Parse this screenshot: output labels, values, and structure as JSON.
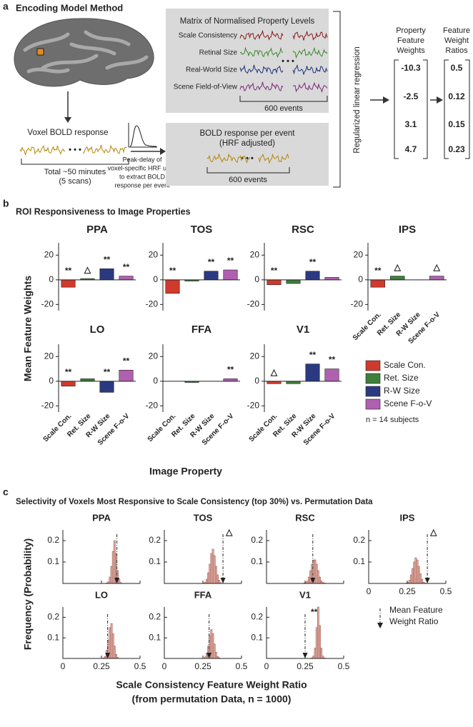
{
  "panel_a": {
    "label": "a",
    "title": "Encoding Model Method",
    "voxel_label": "Voxel BOLD response",
    "duration": [
      "Total ~50 minutes",
      "(5 scans)"
    ],
    "matrix": {
      "title": "Matrix of Normalised Property Levels",
      "rows": [
        {
          "name": "Scale Consistency",
          "color": "#8b1a1a"
        },
        {
          "name": "Retinal Size",
          "color": "#3a8a2a"
        },
        {
          "name": "Real-World Size",
          "color": "#1f2f7a"
        },
        {
          "name": "Scene Field-of-View",
          "color": "#7a2a7a"
        }
      ],
      "events": "600 events"
    },
    "hrf_note": [
      "Peak-delay of",
      "voxel-specific HRF used",
      "to extract BOLD",
      "response per event"
    ],
    "event_box": {
      "title": [
        "BOLD response per event",
        "(HRF adjusted)"
      ],
      "events": "600 events"
    },
    "regression": "Regularized linear regression",
    "weights": {
      "title": [
        "Property",
        "Feature",
        "Weights"
      ],
      "values": [
        -10.3,
        -2.5,
        3.1,
        4.7
      ]
    },
    "ratios": {
      "title": [
        "Feature",
        "Weight",
        "Ratios"
      ],
      "values": [
        0.5,
        0.12,
        0.15,
        0.23
      ]
    }
  },
  "panel_b": {
    "label": "b",
    "title": "ROI Responsiveness to Image Properties",
    "ylabel": "Mean Feature Weights",
    "xlabel": "Image Property",
    "note": "n = 14 subjects"
  },
  "panel_c": {
    "label": "c",
    "title": "Selectivity of Voxels Most Responsive to Scale Consistency (top 30%) vs. Permutation Data",
    "ylabel": "Frequency (Probability)",
    "xlabel": [
      "Scale Consistency Feature Weight Ratio",
      "(from permutation Data, n = 1000)"
    ],
    "legend": [
      "Mean Feature",
      "Weight Ratio"
    ]
  },
  "chart_data": [
    {
      "type": "bar",
      "title": "PPA",
      "title_color": "#2a5aa8",
      "categories": [
        null,
        null,
        null,
        null
      ],
      "colors": [
        "#d03a2c",
        "#3f7f3a",
        "#2b3a80",
        "#b060b0"
      ],
      "values": [
        -6,
        1,
        9,
        3
      ],
      "annotations": [
        "**",
        "△",
        "**",
        "**"
      ],
      "ylim": [
        -25,
        30
      ],
      "yticks": [
        -20,
        0,
        20
      ]
    },
    {
      "type": "bar",
      "title": "TOS",
      "title_color": "#4caf3a",
      "categories": [
        null,
        null,
        null,
        null
      ],
      "colors": [
        "#d03a2c",
        "#3f7f3a",
        "#2b3a80",
        "#b060b0"
      ],
      "values": [
        -11,
        -1,
        7,
        8
      ],
      "annotations": [
        "**",
        null,
        "**",
        "**"
      ],
      "ylim": [
        -25,
        30
      ],
      "yticks": [
        -20,
        0,
        20
      ]
    },
    {
      "type": "bar",
      "title": "RSC",
      "title_color": "#5bc8e0",
      "categories": [
        null,
        null,
        null,
        null
      ],
      "colors": [
        "#d03a2c",
        "#3f7f3a",
        "#2b3a80",
        "#b060b0"
      ],
      "values": [
        -4,
        -3,
        7,
        2
      ],
      "annotations": [
        "**",
        null,
        "**",
        null
      ],
      "ylim": [
        -25,
        30
      ],
      "yticks": [
        -20,
        0,
        20
      ]
    },
    {
      "type": "bar",
      "title": "IPS",
      "title_color": "#f0922a",
      "categories": [
        "Scale Con.",
        "Ret. Size",
        "R-W Size",
        "Scene F-o-V"
      ],
      "colors": [
        "#d03a2c",
        "#3f7f3a",
        "#2b3a80",
        "#b060b0"
      ],
      "values": [
        -6,
        3,
        0,
        3
      ],
      "annotations": [
        "**",
        "△",
        null,
        "△"
      ],
      "ylim": [
        -25,
        30
      ],
      "yticks": [
        -20,
        0,
        20
      ]
    },
    {
      "type": "bar",
      "title": "LO",
      "title_color": "#e02a2a",
      "categories": [
        "Scale Con.",
        "Ret. Size",
        "R-W Size",
        "Scene F-o-V"
      ],
      "colors": [
        "#d03a2c",
        "#3f7f3a",
        "#2b3a80",
        "#b060b0"
      ],
      "values": [
        -4,
        2,
        -9,
        9
      ],
      "annotations": [
        "**",
        null,
        "**",
        "**"
      ],
      "ylim": [
        -25,
        30
      ],
      "yticks": [
        -20,
        0,
        20
      ]
    },
    {
      "type": "bar",
      "title": "FFA",
      "title_color": "#b05ab0",
      "categories": [
        "Scale Con.",
        "Ret. Size",
        "R-W Size",
        "Scene F-o-V"
      ],
      "colors": [
        "#d03a2c",
        "#3f7f3a",
        "#2b3a80",
        "#b060b0"
      ],
      "values": [
        0,
        -1,
        0,
        2
      ],
      "annotations": [
        null,
        null,
        null,
        "**"
      ],
      "ylim": [
        -25,
        30
      ],
      "yticks": [
        -20,
        0,
        20
      ]
    },
    {
      "type": "bar",
      "title": "V1",
      "title_color": "#888888",
      "categories": [
        "Scale Con.",
        "Ret. Size",
        "R-W Size",
        "Scene F-o-V"
      ],
      "colors": [
        "#d03a2c",
        "#3f7f3a",
        "#2b3a80",
        "#b060b0"
      ],
      "values": [
        -2,
        -2,
        14,
        10
      ],
      "annotations": [
        "△",
        null,
        "**",
        "**"
      ],
      "ylim": [
        -25,
        30
      ],
      "yticks": [
        -20,
        0,
        20
      ]
    },
    {
      "type": "histogram",
      "title": "PPA",
      "title_color": "#2a5aa8",
      "color": "#e3b3aa",
      "edge": "#8a3a30",
      "bins": [
        0.2,
        0.21,
        0.22,
        0.23,
        0.24,
        0.25,
        0.26,
        0.27,
        0.28,
        0.29,
        0.3,
        0.31,
        0.32,
        0.33,
        0.34,
        0.35,
        0.36,
        0.37,
        0.38,
        0.39,
        0.4,
        0.41,
        0.42,
        0.43,
        0.44,
        0.45
      ],
      "counts": [
        0,
        0,
        0,
        0,
        0,
        0,
        0,
        0,
        0.002,
        0.008,
        0.03,
        0.08,
        0.15,
        0.2,
        0.14,
        0.06,
        0.02,
        0.004,
        0,
        0,
        0,
        0,
        0,
        0,
        0
      ],
      "mean_ratio": 0.35,
      "marker_label": null,
      "xlim": [
        0,
        0.5
      ],
      "xticks": [
        0,
        0.25,
        0.5
      ],
      "ylim": [
        0,
        0.25
      ],
      "yticks": [
        0.1,
        0.2
      ]
    },
    {
      "type": "histogram",
      "title": "TOS",
      "title_color": "#4caf3a",
      "color": "#e3b3aa",
      "edge": "#8a3a30",
      "bins": [
        0.2,
        0.21,
        0.22,
        0.23,
        0.24,
        0.25,
        0.26,
        0.27,
        0.28,
        0.29,
        0.3,
        0.31,
        0.32,
        0.33,
        0.34,
        0.35,
        0.36,
        0.37,
        0.38,
        0.39,
        0.4,
        0.41,
        0.42,
        0.43,
        0.44,
        0.45
      ],
      "counts": [
        0,
        0,
        0,
        0,
        0,
        0.002,
        0.006,
        0.02,
        0.05,
        0.09,
        0.14,
        0.16,
        0.13,
        0.08,
        0.04,
        0.015,
        0.004,
        0,
        0,
        0,
        0,
        0,
        0,
        0,
        0
      ],
      "mean_ratio": 0.38,
      "marker_label": "△",
      "xlim": [
        0,
        0.5
      ],
      "xticks": [
        0,
        0.25,
        0.5
      ],
      "ylim": [
        0,
        0.25
      ],
      "yticks": [
        0.1,
        0.2
      ]
    },
    {
      "type": "histogram",
      "title": "RSC",
      "title_color": "#5bc8e0",
      "color": "#e3b3aa",
      "edge": "#8a3a30",
      "bins": [
        0.2,
        0.21,
        0.22,
        0.23,
        0.24,
        0.25,
        0.26,
        0.27,
        0.28,
        0.29,
        0.3,
        0.31,
        0.32,
        0.33,
        0.34,
        0.35,
        0.36,
        0.37,
        0.38,
        0.39,
        0.4,
        0.41,
        0.42,
        0.43,
        0.44,
        0.45
      ],
      "counts": [
        0,
        0,
        0,
        0,
        0.002,
        0.005,
        0.012,
        0.03,
        0.06,
        0.09,
        0.11,
        0.11,
        0.09,
        0.06,
        0.03,
        0.012,
        0.005,
        0.002,
        0,
        0,
        0,
        0,
        0,
        0,
        0
      ],
      "mean_ratio": 0.3,
      "marker_label": null,
      "xlim": [
        0,
        0.5
      ],
      "xticks": [
        0,
        0.25,
        0.5
      ],
      "ylim": [
        0,
        0.25
      ],
      "yticks": [
        0.1,
        0.2
      ]
    },
    {
      "type": "histogram",
      "title": "IPS",
      "title_color": "#f0922a",
      "color": "#e3b3aa",
      "edge": "#8a3a30",
      "bins": [
        0.2,
        0.21,
        0.22,
        0.23,
        0.24,
        0.25,
        0.26,
        0.27,
        0.28,
        0.29,
        0.3,
        0.31,
        0.32,
        0.33,
        0.34,
        0.35,
        0.36,
        0.37,
        0.38,
        0.39,
        0.4,
        0.41,
        0.42,
        0.43,
        0.44,
        0.45
      ],
      "counts": [
        0,
        0,
        0,
        0,
        0.002,
        0.006,
        0.015,
        0.04,
        0.07,
        0.1,
        0.12,
        0.11,
        0.08,
        0.045,
        0.02,
        0.006,
        0.002,
        0,
        0,
        0,
        0,
        0,
        0,
        0,
        0
      ],
      "mean_ratio": 0.38,
      "marker_label": "△",
      "xlim": [
        0,
        0.5
      ],
      "xticks": [
        0,
        0.25,
        0.5
      ],
      "ylim": [
        0,
        0.25
      ],
      "yticks": [
        0.1,
        0.2
      ]
    },
    {
      "type": "histogram",
      "title": "LO",
      "title_color": "#e02a2a",
      "color": "#e3b3aa",
      "edge": "#8a3a30",
      "bins": [
        0.2,
        0.21,
        0.22,
        0.23,
        0.24,
        0.25,
        0.26,
        0.27,
        0.28,
        0.29,
        0.3,
        0.31,
        0.32,
        0.33,
        0.34,
        0.35,
        0.36,
        0.37,
        0.38,
        0.39,
        0.4,
        0.41,
        0.42,
        0.43,
        0.44,
        0.45
      ],
      "counts": [
        0,
        0,
        0,
        0,
        0,
        0,
        0.003,
        0.01,
        0.04,
        0.09,
        0.15,
        0.17,
        0.12,
        0.06,
        0.02,
        0.005,
        0,
        0,
        0,
        0,
        0,
        0,
        0,
        0,
        0
      ],
      "mean_ratio": 0.29,
      "marker_label": null,
      "xlim": [
        0,
        0.5
      ],
      "xticks": [
        0,
        0.25,
        0.5
      ],
      "ylim": [
        0,
        0.25
      ],
      "yticks": [
        0.1,
        0.2
      ]
    },
    {
      "type": "histogram",
      "title": "FFA",
      "title_color": "#b05ab0",
      "color": "#e3b3aa",
      "edge": "#8a3a30",
      "bins": [
        0.2,
        0.21,
        0.22,
        0.23,
        0.24,
        0.25,
        0.26,
        0.27,
        0.28,
        0.29,
        0.3,
        0.31,
        0.32,
        0.33,
        0.34,
        0.35,
        0.36,
        0.37,
        0.38,
        0.39,
        0.4,
        0.41,
        0.42,
        0.43,
        0.44,
        0.45
      ],
      "counts": [
        0,
        0,
        0,
        0,
        0,
        0.002,
        0.008,
        0.025,
        0.06,
        0.11,
        0.14,
        0.12,
        0.07,
        0.03,
        0.01,
        0.003,
        0,
        0,
        0,
        0,
        0,
        0,
        0,
        0,
        0
      ],
      "mean_ratio": 0.29,
      "marker_label": null,
      "xlim": [
        0,
        0.5
      ],
      "xticks": [
        0,
        0.25,
        0.5
      ],
      "ylim": [
        0,
        0.25
      ],
      "yticks": [
        0.1,
        0.2
      ]
    },
    {
      "type": "histogram",
      "title": "V1",
      "title_color": "#888888",
      "color": "#e3b3aa",
      "edge": "#8a3a30",
      "bins": [
        0.2,
        0.21,
        0.22,
        0.23,
        0.24,
        0.25,
        0.26,
        0.27,
        0.28,
        0.29,
        0.3,
        0.31,
        0.32,
        0.33,
        0.34,
        0.35,
        0.36,
        0.37,
        0.38,
        0.39,
        0.4,
        0.41,
        0.42,
        0.43,
        0.44,
        0.45
      ],
      "counts": [
        0,
        0,
        0,
        0,
        0,
        0,
        0,
        0,
        0,
        0.003,
        0.012,
        0.05,
        0.15,
        0.25,
        0.16,
        0.05,
        0.012,
        0.003,
        0,
        0,
        0,
        0,
        0,
        0,
        0
      ],
      "mean_ratio": 0.25,
      "marker_label": "**",
      "xlim": [
        0,
        0.5
      ],
      "xticks": [
        0,
        0.25,
        0.5
      ],
      "ylim": [
        0,
        0.25
      ],
      "yticks": [
        0.1,
        0.2
      ]
    }
  ]
}
